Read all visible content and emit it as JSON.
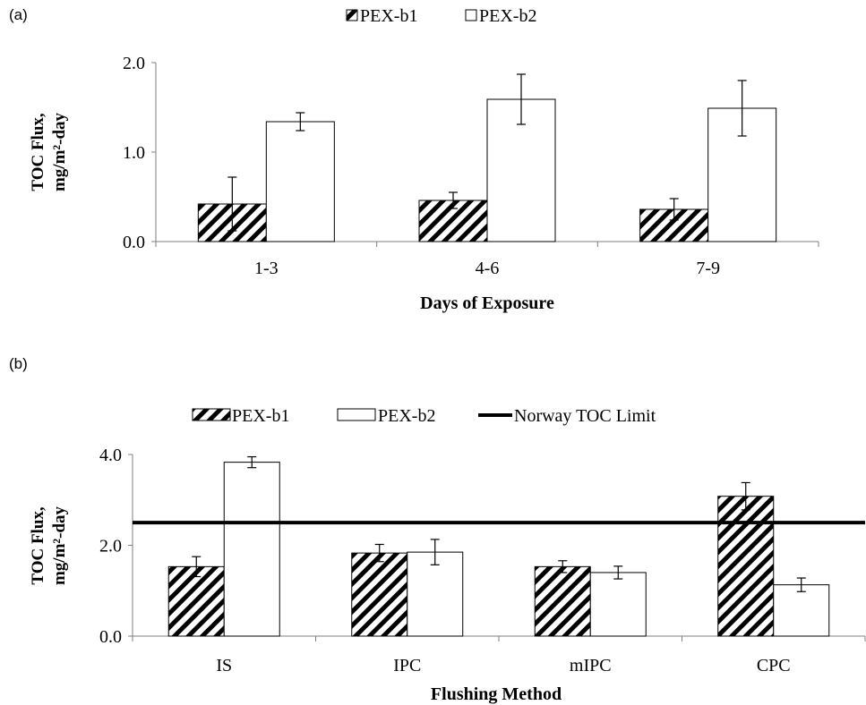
{
  "colors": {
    "axis": "#7f7f7f",
    "bar_stroke": "#000000",
    "hatch": "#000000",
    "limit_line": "#000000",
    "background": "#ffffff"
  },
  "chart_data": [
    {
      "type": "bar",
      "panel_label": "(a)",
      "xlabel": "Days of Exposure",
      "ylabel_line1": "TOC Flux,",
      "ylabel_line2": "mg/m²-day",
      "ylim": [
        0,
        2
      ],
      "yticks": [
        "0.0",
        "1.0",
        "2.0"
      ],
      "categories": [
        "1-3",
        "4-6",
        "7-9"
      ],
      "series": [
        {
          "name": "PEX-b1",
          "pattern": "hatched",
          "values": [
            0.42,
            0.46,
            0.36
          ],
          "errors": [
            0.3,
            0.09,
            0.12
          ]
        },
        {
          "name": "PEX-b2",
          "pattern": "open",
          "values": [
            1.34,
            1.59,
            1.49
          ],
          "errors": [
            0.1,
            0.28,
            0.31
          ]
        }
      ],
      "legend_position": "top-center"
    },
    {
      "type": "bar",
      "panel_label": "(b)",
      "xlabel": "Flushing Method",
      "ylabel_line1": "TOC Flux,",
      "ylabel_line2": "mg/m²-day",
      "ylim": [
        0,
        4
      ],
      "yticks": [
        "0.0",
        "2.0",
        "4.0"
      ],
      "categories": [
        "IS",
        "IPC",
        "mIPC",
        "CPC"
      ],
      "series": [
        {
          "name": "PEX-b1",
          "pattern": "hatched",
          "values": [
            1.53,
            1.83,
            1.53,
            3.08
          ],
          "errors": [
            0.22,
            0.19,
            0.13,
            0.3
          ]
        },
        {
          "name": "PEX-b2",
          "pattern": "open",
          "values": [
            3.83,
            1.85,
            1.4,
            1.13
          ],
          "errors": [
            0.12,
            0.28,
            0.14,
            0.15
          ]
        }
      ],
      "reference_line": {
        "name": "Norway TOC Limit",
        "value": 2.5
      },
      "legend_position": "top-center"
    }
  ]
}
